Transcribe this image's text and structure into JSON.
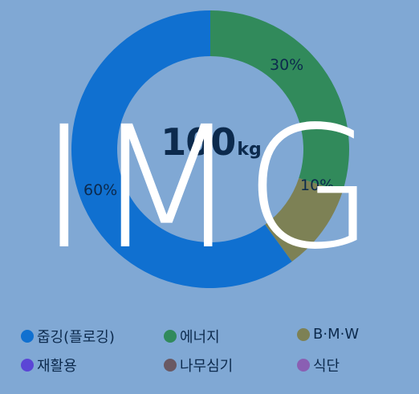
{
  "total": {
    "value": "100",
    "unit": "kg"
  },
  "chart_data": {
    "type": "pie",
    "categories": [
      "줍깅(플로깅)",
      "에너지",
      "B·M·W",
      "재활용",
      "나무심기",
      "식단"
    ],
    "values": [
      60,
      30,
      10,
      0,
      0,
      0
    ],
    "labels": [
      "60%",
      "30%",
      "10%"
    ],
    "colors": [
      "#1070d0",
      "#318a5b",
      "#7d8155",
      "#5b46d6",
      "#6a5963",
      "#8a5fb3"
    ]
  },
  "legend": [
    {
      "label": "줍깅(플로깅)",
      "color": "#1070d0"
    },
    {
      "label": "에너지",
      "color": "#318a5b"
    },
    {
      "label": "B·M·W",
      "color": "#7d8155"
    },
    {
      "label": "재활용",
      "color": "#5b46d6"
    },
    {
      "label": "나무심기",
      "color": "#6a5963"
    },
    {
      "label": "식단",
      "color": "#8a5fb3"
    }
  ],
  "overlay_text": "IMG"
}
